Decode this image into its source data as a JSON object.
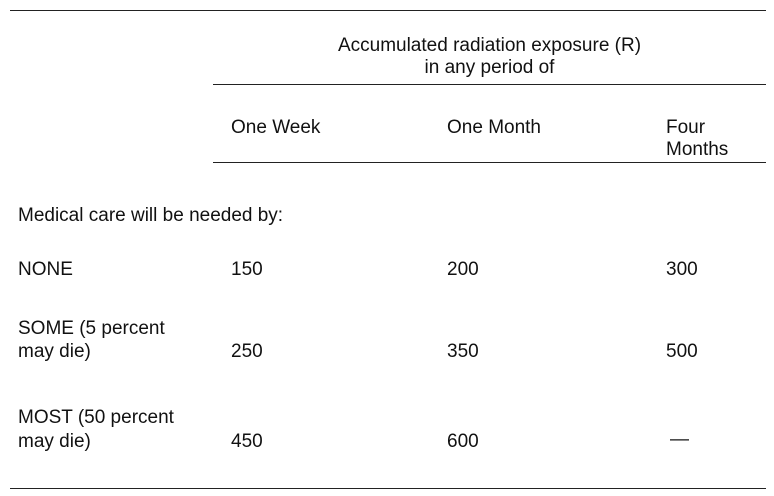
{
  "header": {
    "title_line1": "Accumulated radiation exposure (R)",
    "title_line2": "in any period of"
  },
  "columns": [
    {
      "line1": "One Week",
      "line2": ""
    },
    {
      "line1": "One Month",
      "line2": ""
    },
    {
      "line1": "Four",
      "line2": "Months"
    }
  ],
  "section_label": "Medical care will be needed by:",
  "rows": [
    {
      "label_line1": "NONE",
      "label_line2": "",
      "values": [
        "150",
        "200",
        "300"
      ]
    },
    {
      "label_line1": "SOME (5 percent",
      "label_line2": "may die)",
      "values": [
        "250",
        "350",
        "500"
      ]
    },
    {
      "label_line1": "MOST (50 percent",
      "label_line2": "may die)",
      "values": [
        "450",
        "600",
        "—"
      ]
    }
  ]
}
